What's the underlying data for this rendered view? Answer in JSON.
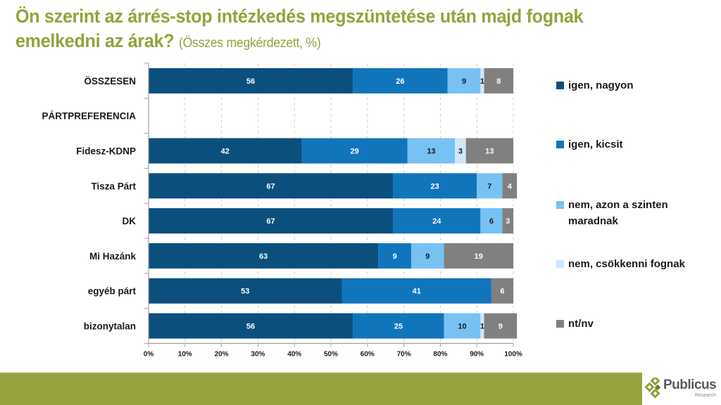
{
  "title": {
    "main": "Ön szerint az árrés-stop intézkedés megszüntetése után majd fognak emelkedni az árak?",
    "subtitle": "(Összes megkérdezett, %)"
  },
  "chart_data": {
    "type": "bar",
    "orientation": "horizontal",
    "stacked": "percent",
    "title": "Ön szerint az árrés-stop intézkedés megszüntetése után majd fognak emelkedni az árak? (Összes megkérdezett, %)",
    "categories": [
      "ÖSSZESEN",
      "PÁRTPREFERENCIA",
      "Fidesz-KDNP",
      "Tisza Párt",
      "DK",
      "Mi Hazánk",
      "egyéb párt",
      "bizonytalan"
    ],
    "series": [
      {
        "name": "igen, nagyon",
        "color": "#0b4f7d",
        "label_color": "#ffffff",
        "values": [
          56,
          null,
          42,
          67,
          67,
          63,
          53,
          56
        ]
      },
      {
        "name": "igen, kicsit",
        "color": "#1175bb",
        "label_color": "#ffffff",
        "values": [
          26,
          null,
          29,
          23,
          24,
          9,
          41,
          25
        ]
      },
      {
        "name": "nem, azon a szinten maradnak",
        "color": "#78c1f3",
        "label_color": "#1a1a1a",
        "values": [
          9,
          null,
          13,
          7,
          6,
          9,
          null,
          10
        ]
      },
      {
        "name": "nem, csökkenni fognak",
        "color": "#cfe7fb",
        "label_color": "#1a1a1a",
        "values": [
          1,
          null,
          3,
          null,
          null,
          null,
          null,
          1
        ]
      },
      {
        "name": "nt/nv",
        "color": "#808080",
        "label_color": "#ffffff",
        "values": [
          8,
          null,
          13,
          4,
          3,
          19,
          6,
          9
        ]
      }
    ],
    "xlim": [
      0,
      100
    ],
    "x_ticks": [
      "0%",
      "10%",
      "20%",
      "30%",
      "40%",
      "50%",
      "60%",
      "70%",
      "80%",
      "90%",
      "100%"
    ],
    "grid": "vertical dashed",
    "legend_position": "right",
    "xlabel": "",
    "ylabel": ""
  },
  "legend": [
    {
      "label": "igen, nagyon",
      "color": "#0b4f7d"
    },
    {
      "label": "igen, kicsit",
      "color": "#1175bb"
    },
    {
      "label": "nem, azon a szinten maradnak",
      "color": "#78c1f3"
    },
    {
      "label": "nem, csökkenni fognak",
      "color": "#cfe7fb"
    },
    {
      "label": "nt/nv",
      "color": "#808080"
    }
  ],
  "footer": {
    "brand": "Publicus",
    "brand_sub": "Research",
    "accent_color": "#98a33f"
  }
}
